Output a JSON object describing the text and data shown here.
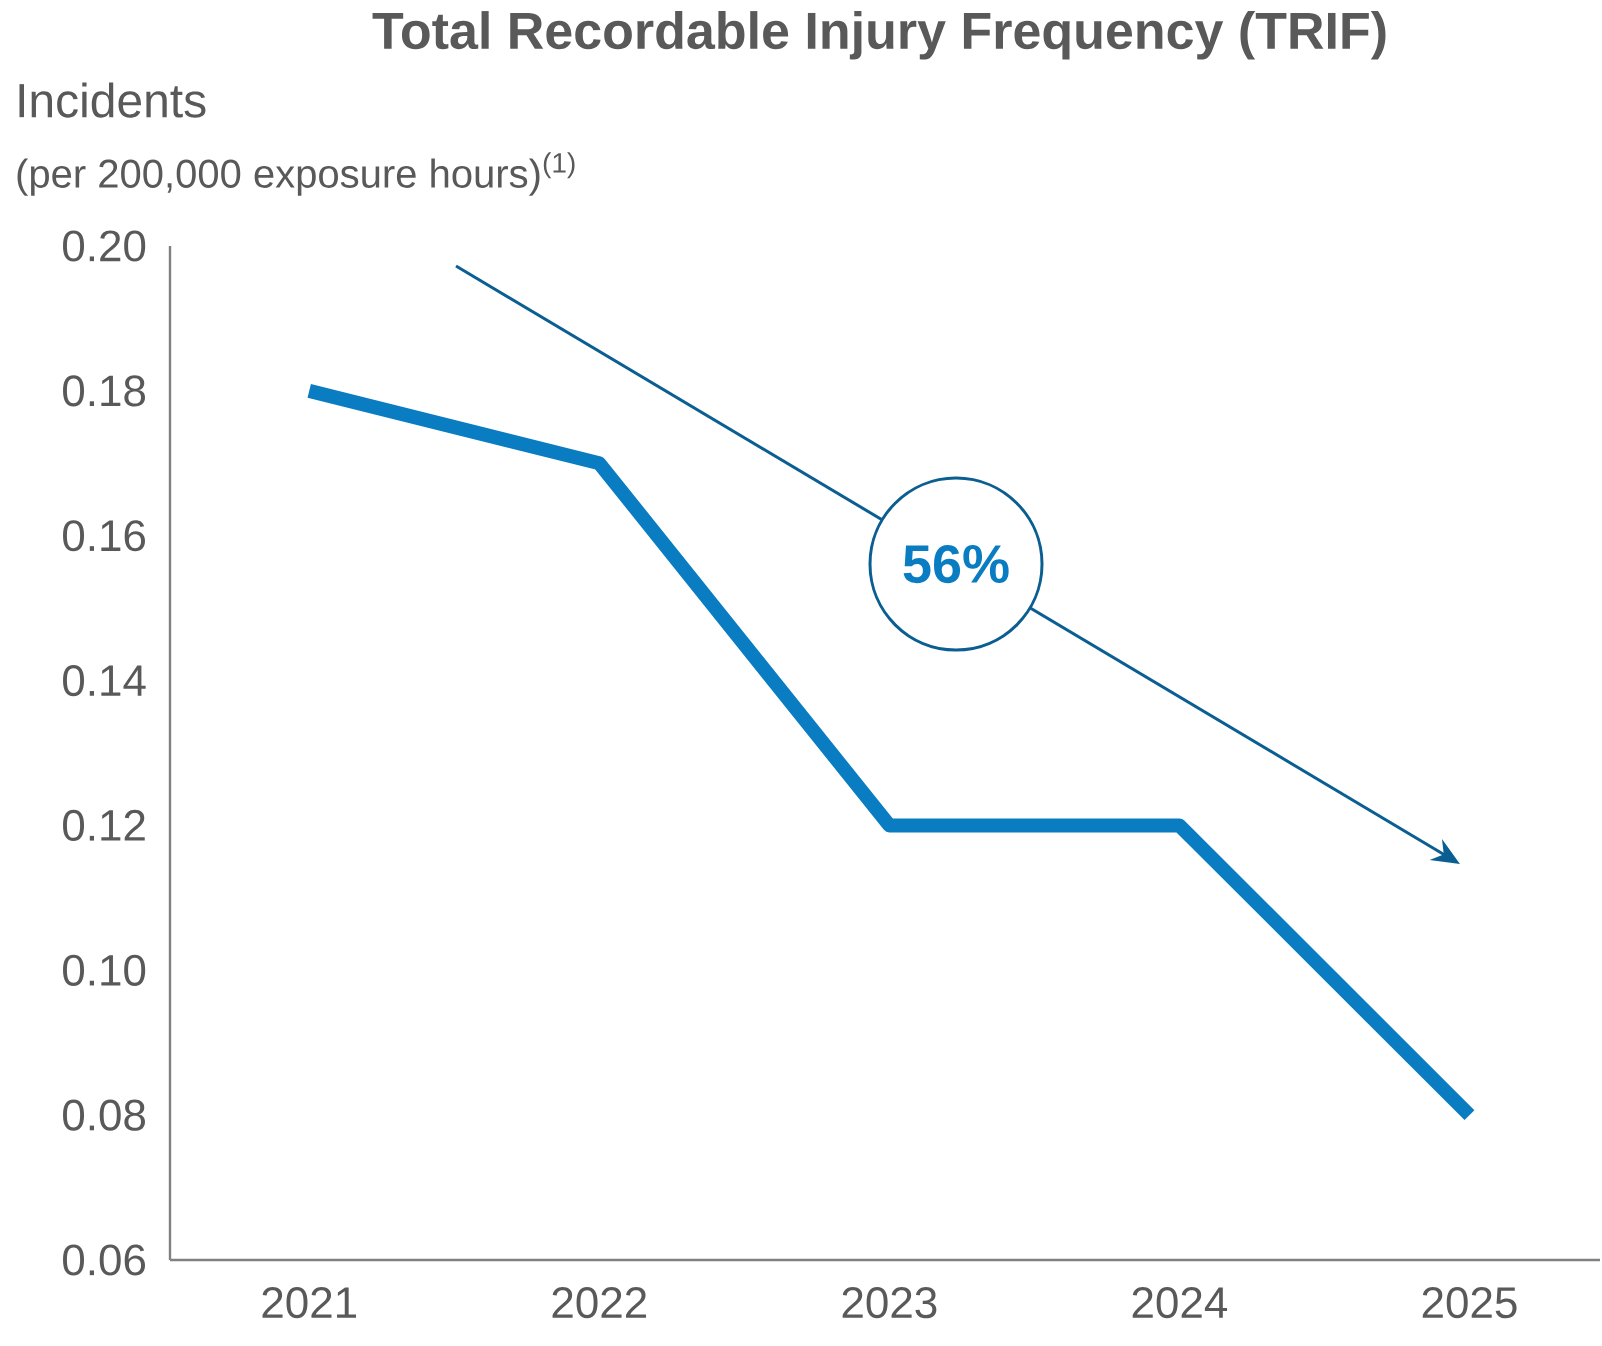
{
  "chart_data": {
    "type": "line",
    "title": "Total Recordable Injury Frequency (TRIF)",
    "ylabel": "Incidents",
    "categories": [
      "2021",
      "2022",
      "2023",
      "2024",
      "2025"
    ],
    "series": [
      {
        "color": "#0a7dc2",
        "values": [
          0.18,
          0.17,
          0.12,
          0.12,
          0.08
        ]
      }
    ],
    "ylim": [
      0.06,
      0.2
    ],
    "yticks": [
      {
        "value": 0.06,
        "label": "0.06"
      },
      {
        "value": 0.08,
        "label": "0.08"
      },
      {
        "value": 0.1,
        "label": "0.10"
      },
      {
        "value": 0.12,
        "label": "0.12"
      },
      {
        "value": 0.14,
        "label": "0.14"
      },
      {
        "value": 0.16,
        "label": "0.16"
      },
      {
        "value": 0.18,
        "label": "0.18"
      },
      {
        "value": 0.2,
        "label": "0.20"
      }
    ],
    "annotations": [
      "(per 200,000 exposure hours)$^{(1)}$",
      "56%"
    ]
  }
}
